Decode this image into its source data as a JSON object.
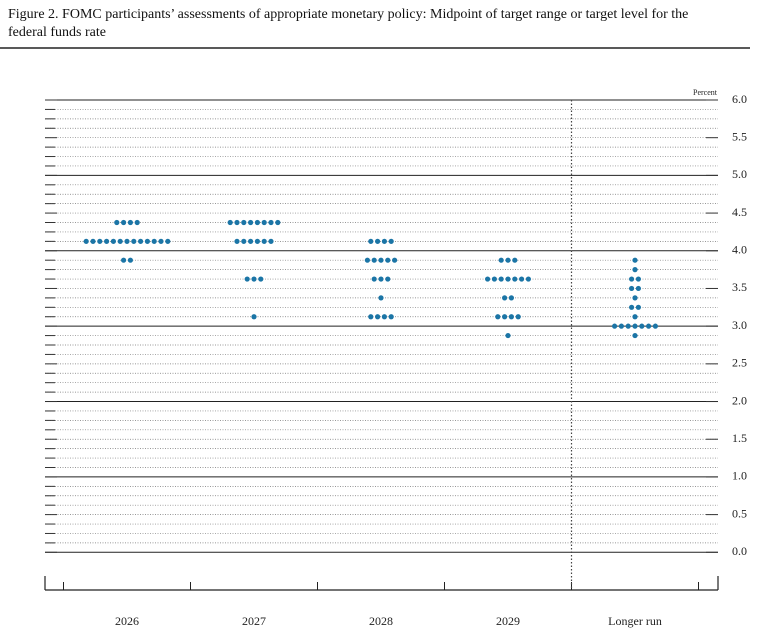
{
  "chart_data": {
    "type": "dot",
    "title": "Figure 2. FOMC participants’ assessments of appropriate monetary policy: Midpoint of target range or target level for the federal funds rate",
    "y_label": "Percent",
    "color": "#1b75a6",
    "categories": [
      "2026",
      "2027",
      "2028",
      "2029",
      "Longer run"
    ],
    "values": [
      [
        4.375,
        4.375,
        4.375,
        4.375,
        4.125,
        4.125,
        4.125,
        4.125,
        4.125,
        4.125,
        4.125,
        4.125,
        4.125,
        4.125,
        4.125,
        4.125,
        4.125,
        3.875,
        3.875
      ],
      [
        4.375,
        4.375,
        4.375,
        4.375,
        4.375,
        4.375,
        4.375,
        4.375,
        4.125,
        4.125,
        4.125,
        4.125,
        4.125,
        4.125,
        3.625,
        3.625,
        3.625,
        3.125
      ],
      [
        4.125,
        4.125,
        4.125,
        4.125,
        3.875,
        3.875,
        3.875,
        3.875,
        3.875,
        3.625,
        3.625,
        3.625,
        3.375,
        3.125,
        3.125,
        3.125,
        3.125
      ],
      [
        3.875,
        3.875,
        3.875,
        3.625,
        3.625,
        3.625,
        3.625,
        3.625,
        3.625,
        3.625,
        3.375,
        3.375,
        3.125,
        3.125,
        3.125,
        3.125,
        2.875
      ],
      [
        3.875,
        3.75,
        3.625,
        3.625,
        3.5,
        3.5,
        3.375,
        3.25,
        3.25,
        3.125,
        3.0,
        3.0,
        3.0,
        3.0,
        3.0,
        3.0,
        3.0,
        2.875
      ]
    ],
    "ylim": [
      -0.5,
      6.0
    ],
    "yticks": [
      {
        "value": 0,
        "label": "0.0"
      },
      {
        "value": 0.5,
        "label": "0.5"
      },
      {
        "value": 1,
        "label": "1.0"
      },
      {
        "value": 1.5,
        "label": "1.5"
      },
      {
        "value": 2,
        "label": "2.0"
      },
      {
        "value": 2.5,
        "label": "2.5"
      },
      {
        "value": 3,
        "label": "3.0"
      },
      {
        "value": 3.5,
        "label": "3.5"
      },
      {
        "value": 4,
        "label": "4.0"
      },
      {
        "value": 4.5,
        "label": "4.5"
      },
      {
        "value": 5,
        "label": "5.0"
      },
      {
        "value": 5.5,
        "label": "5.5"
      },
      {
        "value": 6,
        "label": "6.0"
      }
    ],
    "grid": true
  }
}
